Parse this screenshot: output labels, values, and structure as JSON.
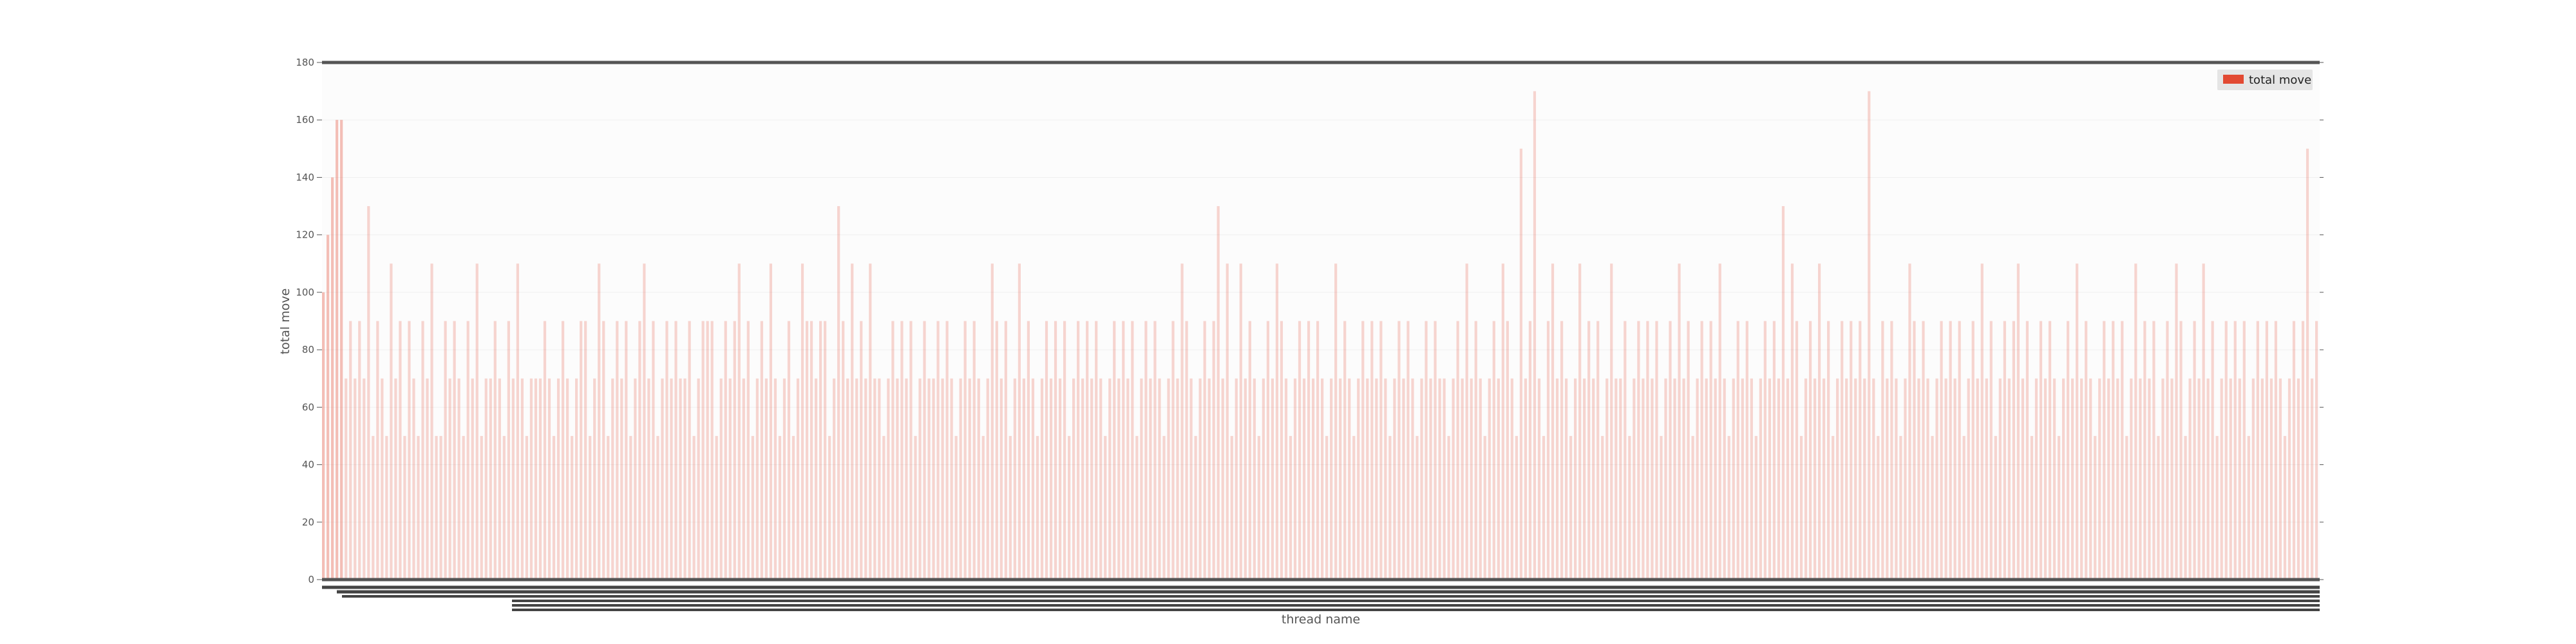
{
  "chart_data": {
    "type": "bar",
    "title": "",
    "xlabel": "thread name",
    "ylabel": "total move",
    "ylim": [
      0,
      180
    ],
    "yticks": [
      0,
      20,
      40,
      60,
      80,
      100,
      120,
      140,
      160,
      180
    ],
    "grid": true,
    "legend_position": "top-right",
    "colors": {
      "series": "#e24a33",
      "axis": "#555555",
      "grid": "#ffffff",
      "plot_bg": "#fcfcfc",
      "legend_bg": "#e5e5e5"
    },
    "x_tick_labels_legible": false,
    "series": [
      {
        "name": "total move",
        "values": [
          100,
          120,
          140,
          160,
          160,
          70,
          90,
          70,
          90,
          70,
          130,
          50,
          90,
          70,
          50,
          110,
          70,
          90,
          50,
          90,
          70,
          50,
          90,
          70,
          110,
          50,
          50,
          90,
          70,
          90,
          70,
          50,
          90,
          70,
          110,
          50,
          70,
          70,
          90,
          70,
          50,
          90,
          70,
          110,
          70,
          50,
          70,
          70,
          70,
          90,
          70,
          50,
          70,
          90,
          70,
          50,
          70,
          90,
          90,
          50,
          70,
          110,
          90,
          50,
          70,
          90,
          70,
          90,
          50,
          70,
          90,
          110,
          70,
          90,
          50,
          70,
          90,
          70,
          90,
          70,
          70,
          90,
          50,
          70,
          90,
          90,
          90,
          50,
          70,
          90,
          70,
          90,
          110,
          70,
          90,
          50,
          70,
          90,
          70,
          110,
          70,
          50,
          70,
          90,
          50,
          70,
          110,
          90,
          90,
          70,
          90,
          90,
          50,
          70,
          130,
          90,
          70,
          110,
          70,
          90,
          70,
          110,
          70,
          70,
          50,
          70,
          90,
          70,
          90,
          70,
          90,
          50,
          70,
          90,
          70,
          70,
          90,
          70,
          90,
          70,
          50,
          70,
          90,
          70,
          90,
          70,
          50,
          70,
          110,
          90,
          70,
          90,
          50,
          70,
          110,
          70,
          90,
          70,
          50,
          70,
          90,
          70,
          90,
          70,
          90,
          50,
          70,
          90,
          70,
          90,
          70,
          90,
          70,
          50,
          70,
          90,
          70,
          90,
          70,
          90,
          50,
          70,
          90,
          70,
          90,
          70,
          50,
          70,
          90,
          70,
          110,
          90,
          70,
          50,
          70,
          90,
          70,
          90,
          130,
          70,
          110,
          50,
          70,
          110,
          70,
          90,
          70,
          50,
          70,
          90,
          70,
          110,
          90,
          70,
          50,
          70,
          90,
          70,
          90,
          70,
          90,
          70,
          50,
          70,
          110,
          70,
          90,
          70,
          50,
          70,
          90,
          70,
          90,
          70,
          90,
          70,
          50,
          70,
          90,
          70,
          90,
          70,
          50,
          70,
          90,
          70,
          90,
          70,
          70,
          50,
          70,
          90,
          70,
          110,
          70,
          90,
          70,
          50,
          70,
          90,
          70,
          110,
          90,
          70,
          50,
          150,
          70,
          90,
          170,
          70,
          50,
          90,
          110,
          70,
          90,
          70,
          50,
          70,
          110,
          70,
          90,
          70,
          90,
          50,
          70,
          110,
          70,
          70,
          90,
          50,
          70,
          90,
          70,
          90,
          70,
          90,
          50,
          70,
          90,
          70,
          110,
          70,
          90,
          50,
          70,
          90,
          70,
          90,
          70,
          110,
          70,
          50,
          70,
          90,
          70,
          90,
          70,
          50,
          70,
          90,
          70,
          90,
          70,
          130,
          70,
          110,
          90,
          50,
          70,
          90,
          70,
          110,
          70,
          90,
          50,
          70,
          90,
          70,
          90,
          70,
          90,
          70,
          170,
          70,
          50,
          90,
          70,
          90,
          70,
          50,
          70,
          110,
          90,
          70,
          90,
          70,
          50,
          70,
          90,
          70,
          90,
          70,
          90,
          50,
          70,
          90,
          70,
          110,
          70,
          90,
          50,
          70,
          90,
          70,
          90,
          110,
          70,
          90,
          50,
          70,
          90,
          70,
          90,
          70,
          50,
          70,
          90,
          70,
          110,
          70,
          90,
          70,
          50,
          70,
          90,
          70,
          90,
          70,
          90,
          50,
          70,
          110,
          70,
          90,
          70,
          90,
          50,
          70,
          90,
          70,
          110,
          90,
          50,
          70,
          90,
          70,
          110,
          70,
          90,
          50,
          70,
          90,
          70,
          90,
          70,
          90,
          50,
          70,
          90,
          70,
          90,
          70,
          90,
          70,
          50,
          70,
          90,
          70,
          90,
          150,
          70,
          90
        ]
      }
    ]
  }
}
